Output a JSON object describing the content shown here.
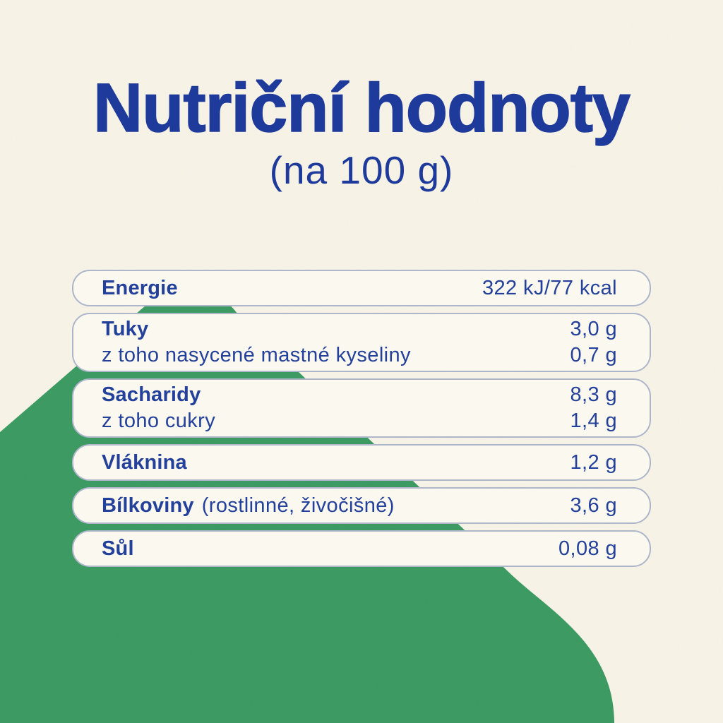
{
  "header": {
    "title": "Nutriční hodnoty",
    "subtitle": "(na 100 g)"
  },
  "table": {
    "rows": [
      {
        "cells": [
          {
            "label": "Energie",
            "bold": true,
            "value": "322 kJ/77 kcal"
          }
        ]
      },
      {
        "cells": [
          {
            "label": "Tuky",
            "bold": true,
            "value": "3,0 g"
          },
          {
            "label": "z toho nasycené mastné kyseliny",
            "bold": false,
            "value": "0,7 g"
          }
        ]
      },
      {
        "cells": [
          {
            "label": "Sacharidy",
            "bold": true,
            "value": "8,3 g"
          },
          {
            "label": "z toho cukry",
            "bold": false,
            "value": "1,4 g"
          }
        ]
      },
      {
        "cells": [
          {
            "label": "Vláknina",
            "bold": true,
            "value": "1,2 g"
          }
        ]
      },
      {
        "cells": [
          {
            "label": "Bílkoviny",
            "label_suffix": "(rostlinné, živočišné)",
            "bold": true,
            "value": "3,6 g"
          }
        ]
      },
      {
        "cells": [
          {
            "label": "Sůl",
            "bold": true,
            "value": "0,08 g"
          }
        ]
      }
    ]
  },
  "colors": {
    "background": "#f7f3e7",
    "green_shape": "#3a9a60",
    "text_blue": "#1e3a9b",
    "row_background": "#fbf8f0",
    "row_border": "#aeb6ca"
  }
}
